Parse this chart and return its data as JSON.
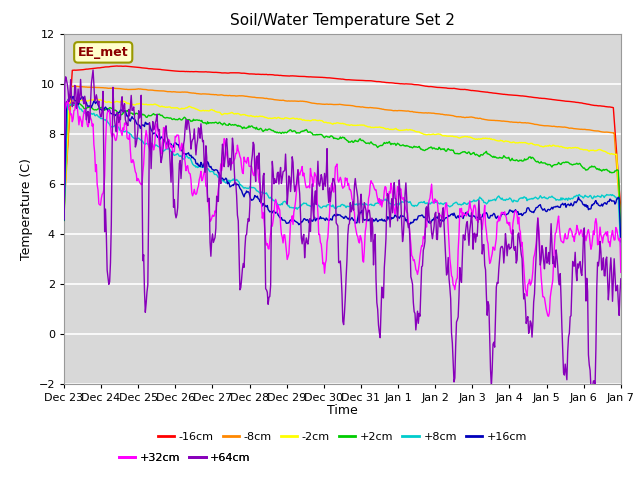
{
  "title": "Soil/Water Temperature Set 2",
  "xlabel": "Time",
  "ylabel": "Temperature (C)",
  "ylim": [
    -2,
    12
  ],
  "yticks": [
    -2,
    0,
    2,
    4,
    6,
    8,
    10,
    12
  ],
  "background_color": "#ffffff",
  "plot_bg_color": "#d8d8d8",
  "watermark": "EE_met",
  "series": [
    {
      "label": "-16cm",
      "color": "#ff0000"
    },
    {
      "label": "-8cm",
      "color": "#ff8800"
    },
    {
      "label": "-2cm",
      "color": "#ffff00"
    },
    {
      "label": "+2cm",
      "color": "#00cc00"
    },
    {
      "label": "+8cm",
      "color": "#00cccc"
    },
    {
      "label": "+16cm",
      "color": "#0000bb"
    },
    {
      "label": "+32cm",
      "color": "#ff00ff"
    },
    {
      "label": "+64cm",
      "color": "#8800bb"
    }
  ],
  "x_tick_labels": [
    "Dec 23",
    "Dec 24",
    "Dec 25",
    "Dec 26",
    "Dec 27",
    "Dec 28",
    "Dec 29",
    "Dec 30",
    "Dec 31",
    "Jan 1",
    "Jan 2",
    "Jan 3",
    "Jan 4",
    "Jan 5",
    "Jan 6",
    "Jan 7"
  ],
  "n_points": 672,
  "seed": 42
}
